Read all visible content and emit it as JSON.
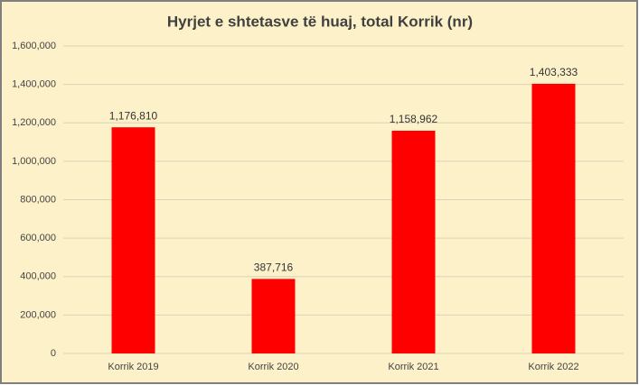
{
  "chart_data": {
    "type": "bar",
    "title": "Hyrjet e shtetasve të huaj, total Korrik (nr)",
    "categories": [
      "Korrik 2019",
      "Korrik 2020",
      "Korrik 2021",
      "Korrik 2022"
    ],
    "values": [
      1176810,
      387716,
      1158962,
      1403333
    ],
    "value_labels": [
      "1,176,810",
      "387,716",
      "1,158,962",
      "1,403,333"
    ],
    "color": "#ff0000",
    "ylim": [
      0,
      1600000
    ],
    "yticks": [
      0,
      {
        "value": 200000,
        "label": "200,000"
      },
      {
        "value": 400000,
        "label": "400,000"
      },
      {
        "value": 600000,
        "label": "600,000"
      },
      {
        "value": 800000,
        "label": "800,000"
      },
      {
        "value": 1000000,
        "label": "1,000,000"
      },
      {
        "value": 1200000,
        "label": "1,200,000"
      },
      {
        "value": 1400000,
        "label": "1,400,000"
      },
      {
        "value": 1600000,
        "label": "1,600,000"
      }
    ],
    "grid": true
  }
}
